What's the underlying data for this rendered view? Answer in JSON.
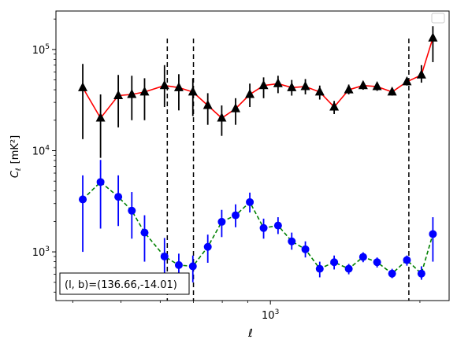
{
  "chart_data": {
    "type": "scatter",
    "xlabel": "ℓ",
    "ylabel_main": "C",
    "ylabel_sub": "ℓ",
    "ylabel_unit": "[mK²]",
    "x_scale": "log",
    "y_scale": "log",
    "xlim": [
      370,
      2290
    ],
    "ylim": [
      330,
      240000
    ],
    "x_tick_labels": [
      {
        "value": 1000,
        "base": "10",
        "exp": "3"
      }
    ],
    "y_tick_labels": [
      {
        "value": 1000,
        "base": "10",
        "exp": "3"
      },
      {
        "value": 10000,
        "base": "10",
        "exp": "4"
      },
      {
        "value": 100000,
        "base": "10",
        "exp": "5"
      }
    ],
    "vlines": [
      620,
      700,
      1900
    ],
    "annotation": "(l, b)=(136.66,-14.01)",
    "legend": "top-right (empty)",
    "series": [
      {
        "color": "#ff0000",
        "marker": "triangle",
        "marker_color": "#000000",
        "errorbar_color": "#000000",
        "line_style": "solid",
        "points": [
          {
            "x": 419,
            "y": 42000,
            "lo": 13000,
            "hi": 72000
          },
          {
            "x": 455,
            "y": 21000,
            "lo": 8500,
            "hi": 36000
          },
          {
            "x": 494,
            "y": 35000,
            "lo": 17000,
            "hi": 56000
          },
          {
            "x": 526,
            "y": 36000,
            "lo": 20000,
            "hi": 55000
          },
          {
            "x": 558,
            "y": 38000,
            "lo": 20000,
            "hi": 52000
          },
          {
            "x": 612,
            "y": 44000,
            "lo": 27000,
            "hi": 70000
          },
          {
            "x": 654,
            "y": 42000,
            "lo": 25000,
            "hi": 57000
          },
          {
            "x": 698,
            "y": 38000,
            "lo": 22000,
            "hi": 52000
          },
          {
            "x": 748,
            "y": 28000,
            "lo": 18000,
            "hi": 37000
          },
          {
            "x": 798,
            "y": 21000,
            "lo": 14000,
            "hi": 28000
          },
          {
            "x": 851,
            "y": 26000,
            "lo": 18000,
            "hi": 33000
          },
          {
            "x": 909,
            "y": 36000,
            "lo": 27000,
            "hi": 46000
          },
          {
            "x": 969,
            "y": 44000,
            "lo": 33000,
            "hi": 53000
          },
          {
            "x": 1036,
            "y": 46000,
            "lo": 37000,
            "hi": 55000
          },
          {
            "x": 1104,
            "y": 42000,
            "lo": 35000,
            "hi": 50000
          },
          {
            "x": 1176,
            "y": 43000,
            "lo": 36000,
            "hi": 51000
          },
          {
            "x": 1257,
            "y": 38000,
            "lo": 32000,
            "hi": 44000
          },
          {
            "x": 1344,
            "y": 27000,
            "lo": 23000,
            "hi": 31000
          },
          {
            "x": 1438,
            "y": 40000,
            "lo": 36000,
            "hi": 45000
          },
          {
            "x": 1537,
            "y": 44000,
            "lo": 40000,
            "hi": 48000
          },
          {
            "x": 1640,
            "y": 43000,
            "lo": 39000,
            "hi": 47000
          },
          {
            "x": 1758,
            "y": 38000,
            "lo": 35000,
            "hi": 41000
          },
          {
            "x": 1883,
            "y": 48000,
            "lo": 44000,
            "hi": 53000
          },
          {
            "x": 2014,
            "y": 56000,
            "lo": 47000,
            "hi": 70000
          },
          {
            "x": 2124,
            "y": 130000,
            "lo": 75000,
            "hi": 170000
          }
        ]
      },
      {
        "color": "#008000",
        "marker": "circle",
        "marker_color": "#0000ff",
        "errorbar_color": "#0000ff",
        "line_style": "dashed",
        "points": [
          {
            "x": 419,
            "y": 3300,
            "lo": 1000,
            "hi": 5700
          },
          {
            "x": 455,
            "y": 4900,
            "lo": 1700,
            "hi": 8100
          },
          {
            "x": 494,
            "y": 3500,
            "lo": 1800,
            "hi": 5700
          },
          {
            "x": 526,
            "y": 2550,
            "lo": 1350,
            "hi": 3900
          },
          {
            "x": 558,
            "y": 1550,
            "lo": 800,
            "hi": 2300
          },
          {
            "x": 612,
            "y": 900,
            "lo": 560,
            "hi": 1370
          },
          {
            "x": 654,
            "y": 740,
            "lo": 520,
            "hi": 960
          },
          {
            "x": 698,
            "y": 720,
            "lo": 500,
            "hi": 920
          },
          {
            "x": 748,
            "y": 1120,
            "lo": 780,
            "hi": 1480
          },
          {
            "x": 798,
            "y": 1980,
            "lo": 1400,
            "hi": 2600
          },
          {
            "x": 851,
            "y": 2300,
            "lo": 1750,
            "hi": 2950
          },
          {
            "x": 909,
            "y": 3100,
            "lo": 2450,
            "hi": 3850
          },
          {
            "x": 969,
            "y": 1720,
            "lo": 1350,
            "hi": 2130
          },
          {
            "x": 1036,
            "y": 1820,
            "lo": 1500,
            "hi": 2200
          },
          {
            "x": 1104,
            "y": 1270,
            "lo": 1050,
            "hi": 1550
          },
          {
            "x": 1176,
            "y": 1060,
            "lo": 880,
            "hi": 1270
          },
          {
            "x": 1257,
            "y": 680,
            "lo": 560,
            "hi": 800
          },
          {
            "x": 1344,
            "y": 790,
            "lo": 670,
            "hi": 920
          },
          {
            "x": 1438,
            "y": 680,
            "lo": 600,
            "hi": 760
          },
          {
            "x": 1537,
            "y": 890,
            "lo": 790,
            "hi": 990
          },
          {
            "x": 1640,
            "y": 790,
            "lo": 700,
            "hi": 880
          },
          {
            "x": 1758,
            "y": 610,
            "lo": 550,
            "hi": 680
          },
          {
            "x": 1883,
            "y": 830,
            "lo": 730,
            "hi": 920
          },
          {
            "x": 2014,
            "y": 610,
            "lo": 530,
            "hi": 720
          },
          {
            "x": 2124,
            "y": 1500,
            "lo": 800,
            "hi": 2200
          }
        ]
      }
    ]
  }
}
